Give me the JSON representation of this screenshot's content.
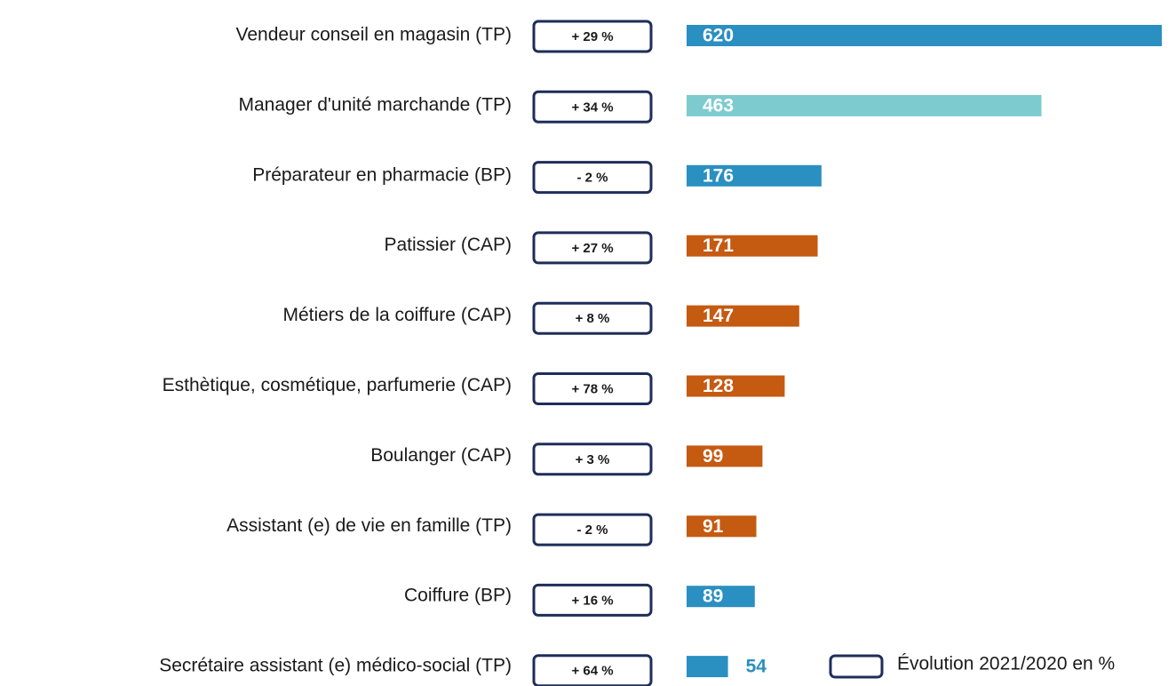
{
  "chart_data": {
    "type": "bar",
    "orientation": "horizontal",
    "categories": [
      "Vendeur conseil en magasin (TP)",
      "Manager d'unité marchande (TP)",
      "Préparateur en pharmacie (BP)",
      "Patissier (CAP)",
      "Métiers de la coiffure (CAP)",
      "Esthètique, cosmétique, parfumerie (CAP)",
      "Boulanger (CAP)",
      "Assistant (e) de vie en famille (TP)",
      "Coiffure (BP)",
      "Secrétaire assistant (e) médico-social (TP)"
    ],
    "values": [
      620,
      463,
      176,
      171,
      147,
      128,
      99,
      91,
      89,
      54
    ],
    "colors": [
      "#2a8fc1",
      "#7ecbcf",
      "#2a8fc1",
      "#c55a11",
      "#c55a11",
      "#c55a11",
      "#c55a11",
      "#c55a11",
      "#2a8fc1",
      "#2a8fc1"
    ],
    "evolution": [
      "+ 29 %",
      "+ 34 %",
      "- 2 %",
      "+ 27 %",
      "+ 8 %",
      "+ 78 %",
      "+ 3 %",
      "- 2 %",
      "+ 16 %",
      "+ 64 %"
    ],
    "legend": "Évolution 2021/2020 en %"
  }
}
